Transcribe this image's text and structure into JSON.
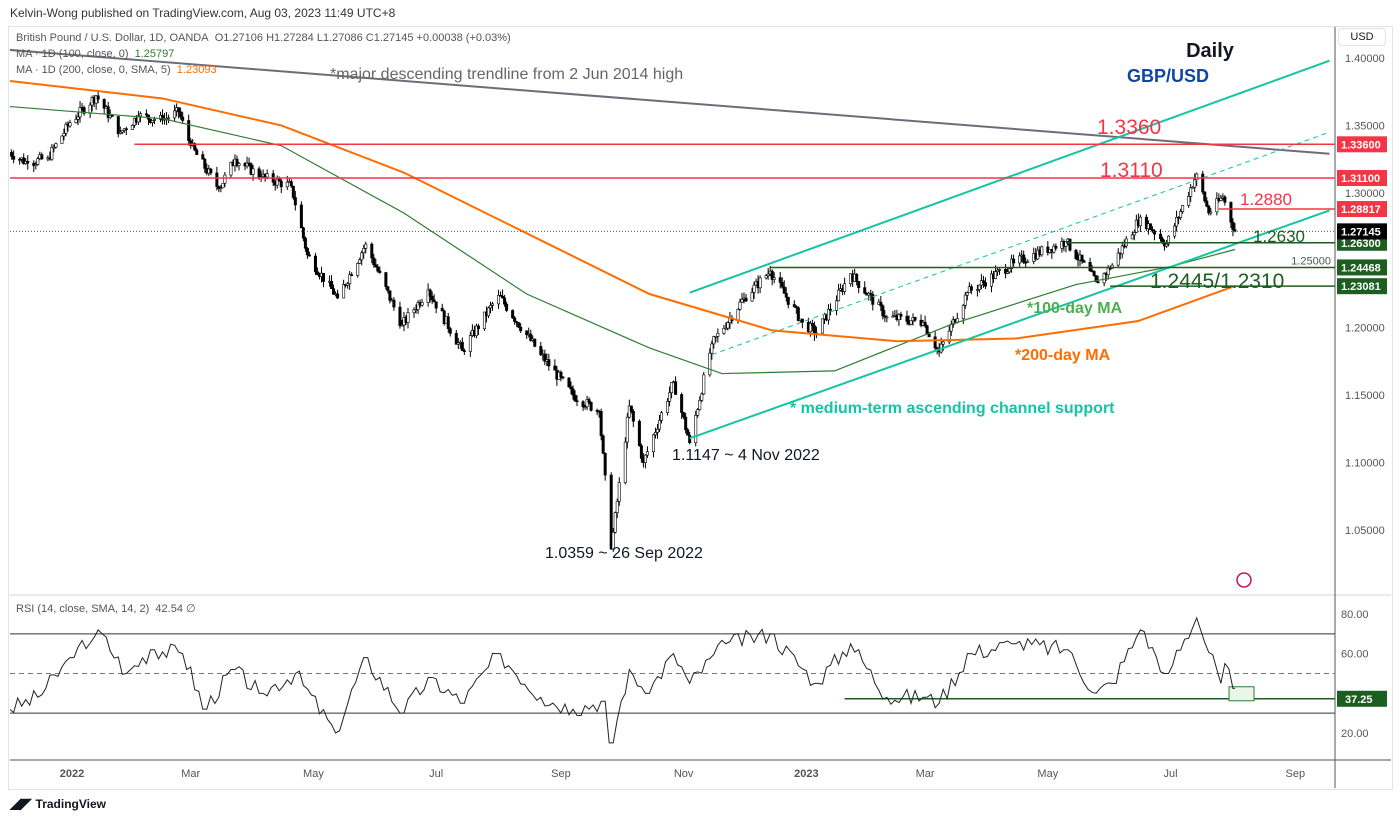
{
  "header": {
    "published": "Kelvin-Wong published on TradingView.com, Aug 03, 2023 11:49 UTC+8",
    "symbol": "British Pound / U.S. Dollar, 1D, OANDA",
    "ohlc": "O1.27106  H1.27284  L1.27086  C1.27145  +0.00038 (+0.03%)",
    "ma100_label": "MA · 1D (100, close, 0)",
    "ma100_value": "1.25797",
    "ma200_label": "MA · 1D (200, close, 0, SMA, 5)",
    "ma200_value": "1.23093",
    "rsi_label": "RSI (14, close, SMA, 14, 2)",
    "rsi_value": "42.54",
    "rsi_extra": "∅",
    "currency_button": "USD"
  },
  "footer": {
    "brand": "TradingView"
  },
  "colors": {
    "ma100": "#2e7d32",
    "ma200": "#ff6d00",
    "red": "#f23645",
    "teal": "#14c4a4",
    "green": "#1b5e20",
    "trend": "#6b6e7a"
  },
  "chart_data": {
    "type": "candlestick",
    "title": "Daily GBP/USD",
    "title_line1": "Daily",
    "title_line2": "GBP/USD",
    "yaxis_ticks": [
      "1.40000",
      "1.35000",
      "1.30000",
      "1.25000",
      "1.20000",
      "1.15000",
      "1.10000",
      "1.05000"
    ],
    "yaxis_values": [
      1.4,
      1.35,
      1.3,
      1.25,
      1.2,
      1.15,
      1.1,
      1.05
    ],
    "ylim": [
      1.012,
      1.416
    ],
    "xaxis_ticks": [
      {
        "label": "2022",
        "date": "2022-01-01"
      },
      {
        "label": "Mar",
        "date": "2022-03-01"
      },
      {
        "label": "May",
        "date": "2022-05-01"
      },
      {
        "label": "Jul",
        "date": "2022-07-01"
      },
      {
        "label": "Sep",
        "date": "2022-09-01"
      },
      {
        "label": "Nov",
        "date": "2022-11-01"
      },
      {
        "label": "2023",
        "date": "2023-01-01"
      },
      {
        "label": "Mar",
        "date": "2023-03-01"
      },
      {
        "label": "May",
        "date": "2023-05-01"
      },
      {
        "label": "Jul",
        "date": "2023-07-01"
      },
      {
        "label": "Sep",
        "date": "2023-09-01"
      }
    ],
    "price_path": [
      [
        "2021-12-01",
        1.33
      ],
      [
        "2021-12-10",
        1.322
      ],
      [
        "2021-12-20",
        1.326
      ],
      [
        "2021-12-31",
        1.352
      ],
      [
        "2022-01-13",
        1.372
      ],
      [
        "2022-01-25",
        1.345
      ],
      [
        "2022-02-03",
        1.357
      ],
      [
        "2022-02-15",
        1.354
      ],
      [
        "2022-02-23",
        1.36
      ],
      [
        "2022-03-01",
        1.335
      ],
      [
        "2022-03-15",
        1.303
      ],
      [
        "2022-03-23",
        1.325
      ],
      [
        "2022-04-05",
        1.312
      ],
      [
        "2022-04-20",
        1.305
      ],
      [
        "2022-04-28",
        1.254
      ],
      [
        "2022-05-13",
        1.222
      ],
      [
        "2022-05-27",
        1.262
      ],
      [
        "2022-06-14",
        1.202
      ],
      [
        "2022-06-27",
        1.228
      ],
      [
        "2022-07-14",
        1.183
      ],
      [
        "2022-08-01",
        1.224
      ],
      [
        "2022-08-22",
        1.18
      ],
      [
        "2022-09-07",
        1.15
      ],
      [
        "2022-09-20",
        1.138
      ],
      [
        "2022-09-26",
        1.0359
      ],
      [
        "2022-10-05",
        1.142
      ],
      [
        "2022-10-12",
        1.1
      ],
      [
        "2022-10-27",
        1.16
      ],
      [
        "2022-11-04",
        1.1147
      ],
      [
        "2022-11-15",
        1.188
      ],
      [
        "2022-12-01",
        1.222
      ],
      [
        "2022-12-14",
        1.242
      ],
      [
        "2022-12-30",
        1.204
      ],
      [
        "2023-01-06",
        1.196
      ],
      [
        "2023-01-23",
        1.24
      ],
      [
        "2023-02-10",
        1.208
      ],
      [
        "2023-02-28",
        1.204
      ],
      [
        "2023-03-08",
        1.182
      ],
      [
        "2023-03-22",
        1.226
      ],
      [
        "2023-04-14",
        1.248
      ],
      [
        "2023-05-10",
        1.264
      ],
      [
        "2023-05-25",
        1.234
      ],
      [
        "2023-06-01",
        1.244
      ],
      [
        "2023-06-16",
        1.282
      ],
      [
        "2023-06-29",
        1.262
      ],
      [
        "2023-07-14",
        1.314
      ],
      [
        "2023-07-20",
        1.285
      ],
      [
        "2023-07-27",
        1.297
      ],
      [
        "2023-08-02",
        1.2715
      ]
    ],
    "series": [
      {
        "name": "MA 100",
        "color": "#2e7d32",
        "values": [
          [
            "2021-12-01",
            1.364
          ],
          [
            "2022-02-15",
            1.355
          ],
          [
            "2022-04-15",
            1.335
          ],
          [
            "2022-06-15",
            1.285
          ],
          [
            "2022-08-15",
            1.225
          ],
          [
            "2022-10-15",
            1.185
          ],
          [
            "2022-11-20",
            1.166
          ],
          [
            "2023-01-15",
            1.168
          ],
          [
            "2023-03-15",
            1.203
          ],
          [
            "2023-05-15",
            1.232
          ],
          [
            "2023-06-30",
            1.245
          ],
          [
            "2023-08-02",
            1.258
          ]
        ]
      },
      {
        "name": "MA 200",
        "color": "#ff6d00",
        "values": [
          [
            "2021-12-01",
            1.383
          ],
          [
            "2022-02-15",
            1.37
          ],
          [
            "2022-04-15",
            1.35
          ],
          [
            "2022-06-15",
            1.315
          ],
          [
            "2022-08-15",
            1.27
          ],
          [
            "2022-10-15",
            1.225
          ],
          [
            "2022-12-15",
            1.198
          ],
          [
            "2023-02-15",
            1.19
          ],
          [
            "2023-04-15",
            1.192
          ],
          [
            "2023-06-15",
            1.205
          ],
          [
            "2023-08-02",
            1.231
          ]
        ]
      }
    ],
    "lines": [
      {
        "name": "descending-trendline",
        "color": "#6b6e7a",
        "from": [
          "2021-12-01",
          1.406
        ],
        "to": [
          "2023-09-18",
          1.329
        ],
        "dash": false
      },
      {
        "name": "channel-upper",
        "color": "#14c4a4",
        "from": [
          "2022-11-04",
          1.226
        ],
        "to": [
          "2023-09-18",
          1.398
        ],
        "dash": false
      },
      {
        "name": "channel-lower",
        "color": "#14c4a4",
        "from": [
          "2022-11-04",
          1.118
        ],
        "to": [
          "2023-09-18",
          1.287
        ],
        "dash": false
      },
      {
        "name": "channel-mid",
        "color": "#14c4a4",
        "from": [
          "2022-11-15",
          1.18
        ],
        "to": [
          "2023-09-18",
          1.345
        ],
        "dash": true
      }
    ],
    "levels": [
      {
        "label": "1.3360",
        "price": 1.336,
        "axis": "1.33600",
        "from": "2022-02-01",
        "color": "#f23645"
      },
      {
        "label": "1.3110",
        "price": 1.311,
        "axis": "1.31100",
        "from": "2021-12-01",
        "color": "#f23645"
      },
      {
        "label": "1.2880",
        "price": 1.288,
        "axis": "1.28817",
        "from": "2023-07-25",
        "color": "#f23645"
      },
      {
        "label": "1.2630",
        "price": 1.263,
        "axis": "1.26300",
        "from": "2023-05-10",
        "color": "#1b5e20"
      },
      {
        "label": "1.2445/1.2310",
        "price": 1.2447,
        "axis": "1.24468",
        "from": "2022-12-14",
        "color": "#1b5e20"
      },
      {
        "label": "",
        "price": 1.2308,
        "axis": "1.23081",
        "from": "2023-06-01",
        "color": "#1b5e20"
      }
    ],
    "last_price": "1.27145",
    "annotations": {
      "trendline": "*major descending trendline from 2 Jun 2014 high",
      "ma100": "*100-day MA",
      "ma200": "*200-day MA",
      "channel": "* medium-term ascending channel support",
      "low1": "1.0359 ~ 26 Sep 2022",
      "low2": "1.1147 ~ 4 Nov 2022"
    },
    "rsi": {
      "ylim": [
        10,
        86
      ],
      "ticks": [
        "80.00",
        "60.00",
        "20.00"
      ],
      "tick_values": [
        80,
        60,
        20
      ],
      "bands": [
        70,
        50,
        30
      ],
      "support": 37.25,
      "support_label": "37.25",
      "path": [
        [
          "2021-12-01",
          32
        ],
        [
          "2021-12-15",
          38
        ],
        [
          "2022-01-01",
          58
        ],
        [
          "2022-01-14",
          72
        ],
        [
          "2022-01-28",
          50
        ],
        [
          "2022-02-10",
          62
        ],
        [
          "2022-02-25",
          60
        ],
        [
          "2022-03-08",
          32
        ],
        [
          "2022-03-22",
          52
        ],
        [
          "2022-04-05",
          40
        ],
        [
          "2022-04-22",
          50
        ],
        [
          "2022-05-12",
          20
        ],
        [
          "2022-05-27",
          58
        ],
        [
          "2022-06-14",
          30
        ],
        [
          "2022-06-28",
          48
        ],
        [
          "2022-07-14",
          35
        ],
        [
          "2022-08-01",
          60
        ],
        [
          "2022-08-22",
          38
        ],
        [
          "2022-09-07",
          32
        ],
        [
          "2022-09-22",
          36
        ],
        [
          "2022-09-26",
          15
        ],
        [
          "2022-10-05",
          52
        ],
        [
          "2022-10-14",
          40
        ],
        [
          "2022-10-27",
          60
        ],
        [
          "2022-11-04",
          45
        ],
        [
          "2022-11-22",
          65
        ],
        [
          "2022-12-14",
          70
        ],
        [
          "2023-01-06",
          45
        ],
        [
          "2023-01-23",
          65
        ],
        [
          "2023-02-10",
          38
        ],
        [
          "2023-03-01",
          38
        ],
        [
          "2023-03-08",
          35
        ],
        [
          "2023-03-23",
          60
        ],
        [
          "2023-04-14",
          65
        ],
        [
          "2023-05-10",
          62
        ],
        [
          "2023-05-25",
          40
        ],
        [
          "2023-06-02",
          45
        ],
        [
          "2023-06-16",
          72
        ],
        [
          "2023-06-29",
          50
        ],
        [
          "2023-07-14",
          78
        ],
        [
          "2023-07-26",
          45
        ],
        [
          "2023-07-28",
          55
        ],
        [
          "2023-08-02",
          42.5
        ]
      ]
    }
  }
}
